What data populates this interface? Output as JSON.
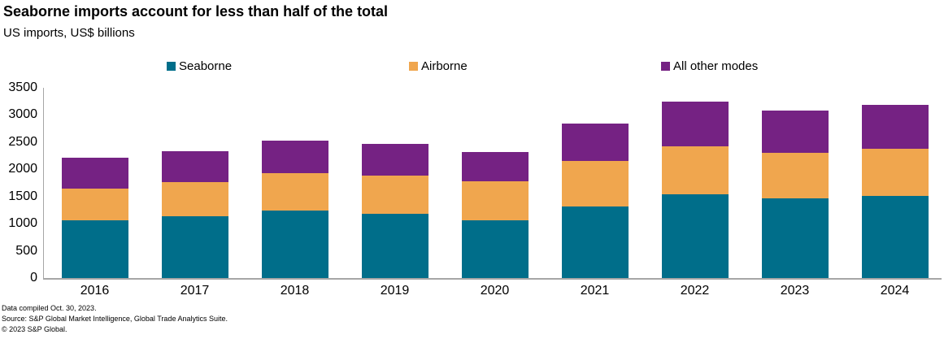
{
  "header": {
    "title": "Seaborne imports account for less than half of the total",
    "subtitle": "US imports, US$ billions"
  },
  "chart_data": {
    "type": "bar",
    "stacked": true,
    "title": "Seaborne imports account for less than half of the total",
    "subtitle": "US imports, US$ billions",
    "xlabel": "",
    "ylabel": "US imports, US$ billions",
    "categories": [
      "2016",
      "2017",
      "2018",
      "2019",
      "2020",
      "2021",
      "2022",
      "2023",
      "2024"
    ],
    "series": [
      {
        "name": "Seaborne",
        "color": "#006E8A",
        "values": [
          1060,
          1140,
          1240,
          1185,
          1060,
          1320,
          1540,
          1460,
          1505
        ]
      },
      {
        "name": "Airborne",
        "color": "#F0A64E",
        "values": [
          580,
          630,
          695,
          695,
          720,
          835,
          885,
          845,
          870
        ]
      },
      {
        "name": "All other modes",
        "color": "#752283",
        "values": [
          570,
          560,
          590,
          595,
          545,
          690,
          815,
          780,
          810
        ]
      }
    ],
    "totals": [
      2210,
      2330,
      2525,
      2475,
      2325,
      2845,
      3240,
      3085,
      3185
    ],
    "ylim": [
      0,
      3500
    ],
    "yticks": [
      0,
      500,
      1000,
      1500,
      2000,
      2500,
      3000,
      3500
    ],
    "grid": false,
    "legend_position": "top",
    "axis_color": "#a6a6a6"
  },
  "footer": {
    "line1": "Data compiled Oct. 30, 2023.",
    "line2": "Source: S&P Global Market Intelligence, Global Trade Analytics Suite.",
    "line3": "© 2023 S&P Global."
  }
}
